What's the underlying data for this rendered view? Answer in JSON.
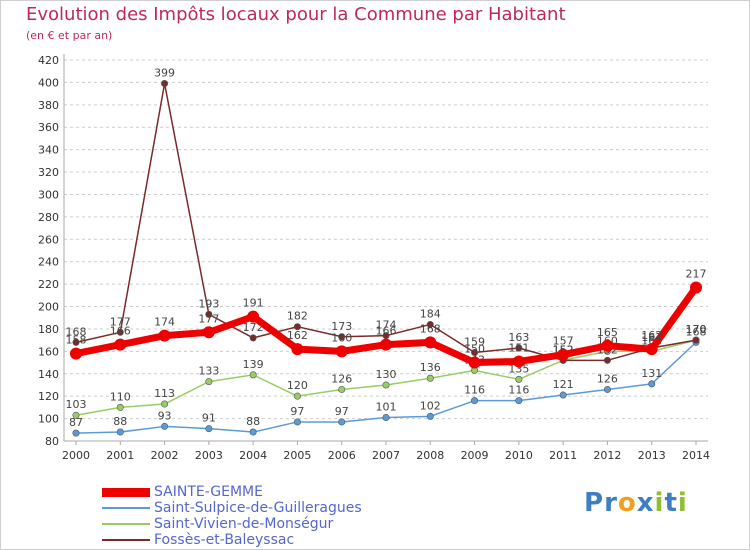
{
  "chart_data": {
    "type": "line",
    "title": "Evolution des Impôts locaux pour la Commune par Habitant",
    "subtitle": "(en € et par an)",
    "x": [
      "2000",
      "2001",
      "2002",
      "2003",
      "2004",
      "2005",
      "2006",
      "2007",
      "2008",
      "2009",
      "2010",
      "2011",
      "2012",
      "2013",
      "2014"
    ],
    "yticks": [
      80,
      100,
      120,
      140,
      160,
      180,
      200,
      220,
      240,
      260,
      280,
      300,
      320,
      340,
      360,
      380,
      400,
      420
    ],
    "ylim": [
      80,
      420
    ],
    "grid": "horizontal-dashed",
    "legend_position": "bottom-left",
    "series": [
      {
        "name": "SAINTE-GEMME",
        "color": "#ee0000",
        "style": "thick",
        "values": [
          158,
          166,
          174,
          177,
          191,
          162,
          160,
          166,
          168,
          150,
          151,
          157,
          165,
          162,
          217
        ],
        "labels": [
          "158",
          "166",
          "174",
          "177",
          "191",
          "162",
          "160",
          "166",
          "168",
          "150",
          "151",
          "157",
          "165",
          "162",
          "217"
        ]
      },
      {
        "name": "Saint-Sulpice-de-Guilleragues",
        "color": "#5b9bd5",
        "style": "thin",
        "values": [
          87,
          88,
          93,
          91,
          88,
          97,
          97,
          101,
          102,
          116,
          116,
          121,
          126,
          131,
          168
        ],
        "labels": [
          "87",
          "88",
          "93",
          "91",
          "88",
          "97",
          "97",
          "101",
          "102",
          "116",
          "116",
          "121",
          "126",
          "131",
          "168"
        ]
      },
      {
        "name": "Saint-Vivien-de-Monségur",
        "color": "#99cc66",
        "style": "thin",
        "values": [
          103,
          110,
          113,
          133,
          139,
          120,
          126,
          130,
          136,
          143,
          135,
          152,
          160,
          160,
          170
        ],
        "labels": [
          "103",
          "110",
          "113",
          "133",
          "139",
          "120",
          "126",
          "130",
          "136",
          "143",
          "135",
          "152",
          "160",
          "160",
          "170"
        ]
      },
      {
        "name": "Fossès-et-Baleyssac",
        "color": "#7a2a2a",
        "style": "thin",
        "values": [
          168,
          177,
          399,
          193,
          172,
          182,
          173,
          174,
          184,
          159,
          163,
          152,
          152,
          163,
          170
        ],
        "labels": [
          "168",
          "177",
          "399",
          "193",
          "172",
          "182",
          "173",
          "174",
          "184",
          "159",
          "163",
          "152",
          "152",
          "163",
          "170"
        ]
      }
    ]
  },
  "logo": {
    "text": "Proxiti",
    "letters": [
      {
        "ch": "P",
        "color": "#3d7fc1"
      },
      {
        "ch": "r",
        "color": "#3d7fc1"
      },
      {
        "ch": "o",
        "color": "#f0a020"
      },
      {
        "ch": "x",
        "color": "#3d7fc1"
      },
      {
        "ch": "i",
        "color": "#8dbf2e"
      },
      {
        "ch": "t",
        "color": "#3d7fc1"
      },
      {
        "ch": "i",
        "color": "#8dbf2e"
      }
    ]
  }
}
